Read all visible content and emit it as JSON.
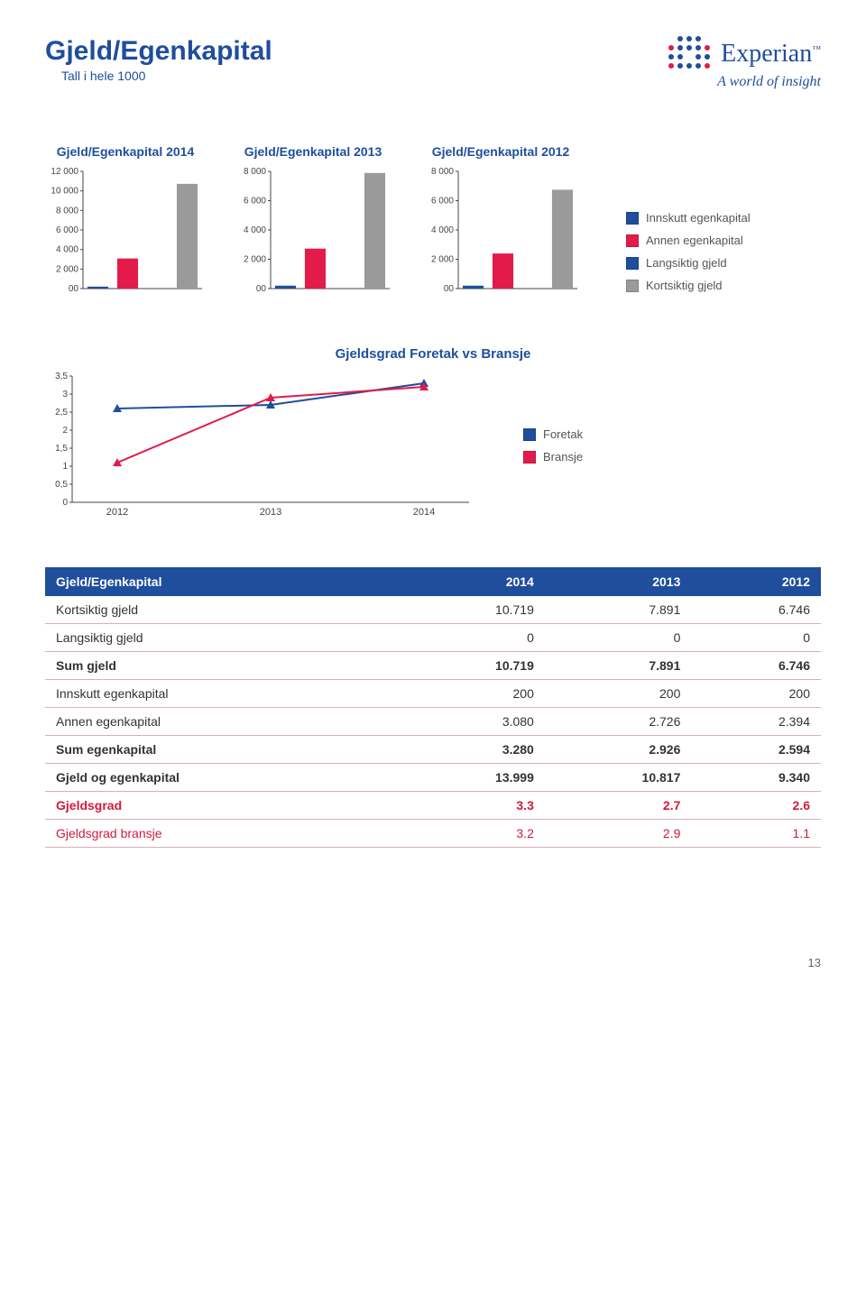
{
  "logo": {
    "name": "Experian",
    "tagline": "A world of insight"
  },
  "page_title": "Gjeld/Egenkapital",
  "page_subtitle": "Tall i hele 1000",
  "page_number": "13",
  "bar_chart_titles": [
    "Gjeld/Egenkapital 2014",
    "Gjeld/Egenkapital 2013",
    "Gjeld/Egenkapital 2012"
  ],
  "bar_charts": [
    {
      "ymax": 12000,
      "ytick_step": 2000,
      "yticks": [
        "12 000",
        "10 000",
        "8 000",
        "6 000",
        "4 000",
        "2 000",
        "00"
      ],
      "bars": [
        {
          "value": 200,
          "color": "#1f4e9c"
        },
        {
          "value": 3080,
          "color": "#e31b4a"
        },
        {
          "value": 0,
          "color": "#1f4e9c"
        },
        {
          "value": 10719,
          "color": "#9a9a9a"
        }
      ]
    },
    {
      "ymax": 8000,
      "ytick_step": 2000,
      "yticks": [
        "8 000",
        "6 000",
        "4 000",
        "2 000",
        "00"
      ],
      "bars": [
        {
          "value": 200,
          "color": "#1f4e9c"
        },
        {
          "value": 2726,
          "color": "#e31b4a"
        },
        {
          "value": 0,
          "color": "#1f4e9c"
        },
        {
          "value": 7891,
          "color": "#9a9a9a"
        }
      ]
    },
    {
      "ymax": 8000,
      "ytick_step": 2000,
      "yticks": [
        "8 000",
        "6 000",
        "4 000",
        "2 000",
        "00"
      ],
      "bars": [
        {
          "value": 200,
          "color": "#1f4e9c"
        },
        {
          "value": 2394,
          "color": "#e31b4a"
        },
        {
          "value": 0,
          "color": "#1f4e9c"
        },
        {
          "value": 6746,
          "color": "#9a9a9a"
        }
      ]
    }
  ],
  "bar_legend": [
    {
      "label": "Innskutt egenkapital",
      "color": "#1f4e9c"
    },
    {
      "label": "Annen egenkapital",
      "color": "#e31b4a"
    },
    {
      "label": "Langsiktig gjeld",
      "color": "#1f4e9c"
    },
    {
      "label": "Kortsiktig gjeld",
      "color": "#9a9a9a"
    }
  ],
  "line_chart": {
    "title": "Gjeldsgrad Foretak vs Bransje",
    "xticks": [
      "2012",
      "2013",
      "2014"
    ],
    "yticks": [
      "3,5",
      "3",
      "2,5",
      "2",
      "1,5",
      "1",
      "0,5",
      "0"
    ],
    "ymax": 3.5,
    "series": [
      {
        "name": "Foretak",
        "color": "#1f4e9c",
        "marker": "triangle",
        "values": [
          2.6,
          2.7,
          3.3
        ]
      },
      {
        "name": "Bransje",
        "color": "#e31b4a",
        "marker": "triangle",
        "values": [
          1.1,
          2.9,
          3.2
        ]
      }
    ]
  },
  "line_legend": [
    {
      "label": "Foretak",
      "color": "#1f4e9c"
    },
    {
      "label": "Bransje",
      "color": "#e31b4a"
    }
  ],
  "table": {
    "headers": [
      "Gjeld/Egenkapital",
      "2014",
      "2013",
      "2012"
    ],
    "rows": [
      {
        "cells": [
          "Kortsiktig gjeld",
          "10.719",
          "7.891",
          "6.746"
        ],
        "style": "normal"
      },
      {
        "cells": [
          "Langsiktig gjeld",
          "0",
          "0",
          "0"
        ],
        "style": "normal"
      },
      {
        "cells": [
          "Sum gjeld",
          "10.719",
          "7.891",
          "6.746"
        ],
        "style": "bold"
      },
      {
        "cells": [
          "Innskutt egenkapital",
          "200",
          "200",
          "200"
        ],
        "style": "normal"
      },
      {
        "cells": [
          "Annen egenkapital",
          "3.080",
          "2.726",
          "2.394"
        ],
        "style": "normal"
      },
      {
        "cells": [
          "Sum egenkapital",
          "3.280",
          "2.926",
          "2.594"
        ],
        "style": "bold"
      },
      {
        "cells": [
          "Gjeld og egenkapital",
          "13.999",
          "10.817",
          "9.340"
        ],
        "style": "bold"
      },
      {
        "cells": [
          "Gjeldsgrad",
          "3.3",
          "2.7",
          "2.6"
        ],
        "style": "red-bold"
      },
      {
        "cells": [
          "Gjeldsgrad bransje",
          "3.2",
          "2.9",
          "1.1"
        ],
        "style": "red"
      }
    ]
  }
}
